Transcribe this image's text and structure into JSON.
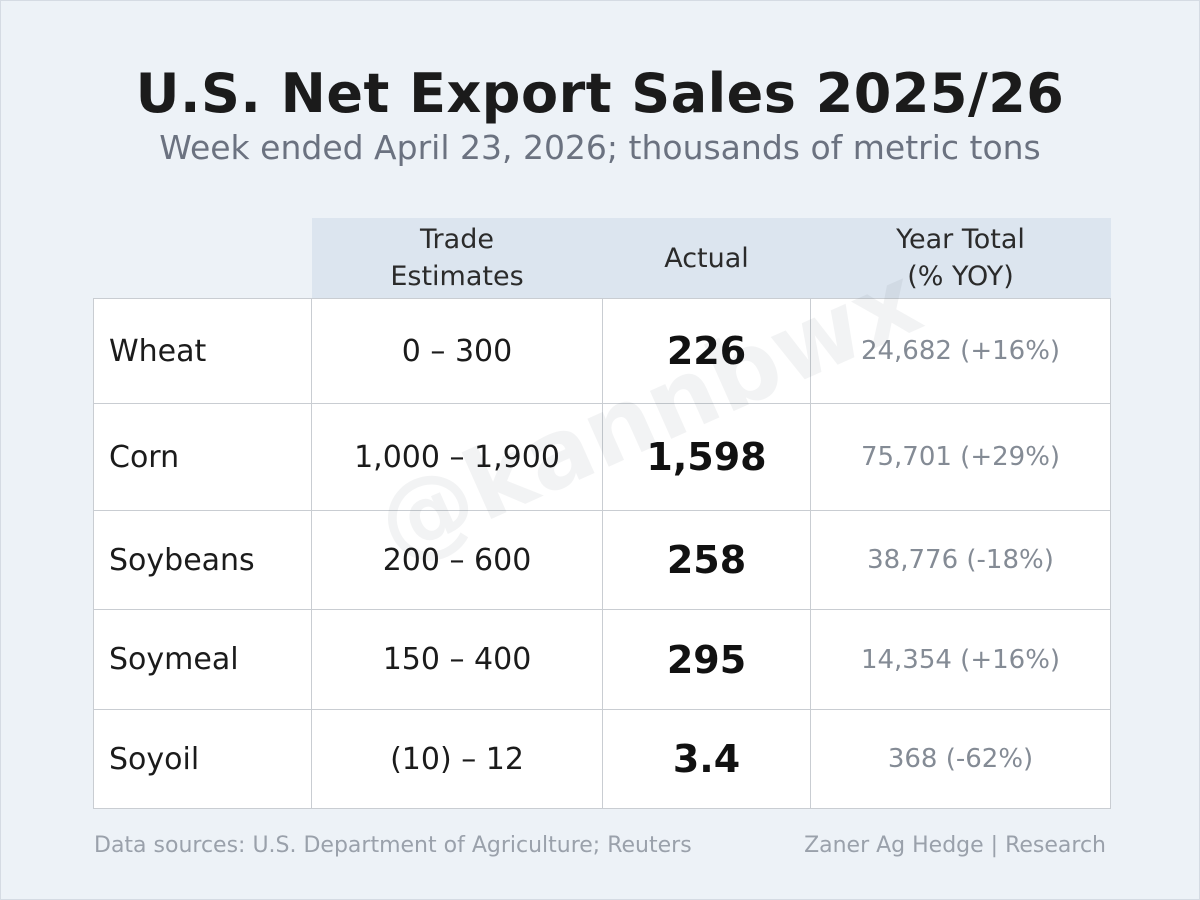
{
  "header": {
    "title": "U.S. Net Export Sales 2025/26",
    "subtitle": "Week ended April 23, 2026; thousands of metric tons"
  },
  "table": {
    "columns": {
      "trade_estimates_line1": "Trade",
      "trade_estimates_line2": "Estimates",
      "actual": "Actual",
      "year_total_line1": "Year Total",
      "year_total_line2": "(% YOY)"
    },
    "rows": [
      {
        "commodity": "Wheat",
        "trade_estimates": "0 – 300",
        "actual": "226",
        "year_total": "24,682 (+16%)"
      },
      {
        "commodity": "Corn",
        "trade_estimates": "1,000 – 1,900",
        "actual": "1,598",
        "year_total": "75,701 (+29%)"
      },
      {
        "commodity": "Soybeans",
        "trade_estimates": "200 – 600",
        "actual": "258",
        "year_total": "38,776 (-18%)"
      },
      {
        "commodity": "Soymeal",
        "trade_estimates": "150 – 400",
        "actual": "295",
        "year_total": "14,354 (+16%)"
      },
      {
        "commodity": "Soyoil",
        "trade_estimates": "(10) – 12",
        "actual": "3.4",
        "year_total": "368 (-62%)"
      }
    ]
  },
  "watermark": "@kannbwx",
  "footer": {
    "sources": "Data sources: U.S. Department of Agriculture; Reuters",
    "credit": "Zaner Ag Hedge | Research"
  }
}
